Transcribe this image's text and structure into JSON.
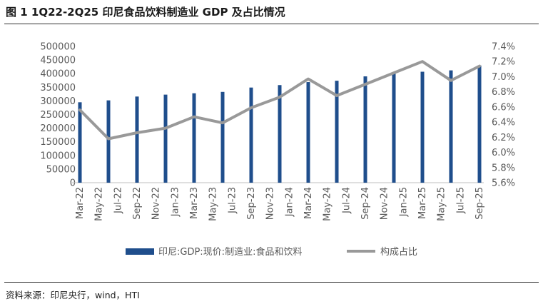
{
  "title": "图 1 1Q22-2Q25 印尼食品饮料制造业 GDP 及占比情况",
  "source": "资料来源：印尼央行，wind，HTI",
  "chart_data": {
    "type": "bar+line",
    "categories": [
      "Mar-22",
      "May-22",
      "Jul-22",
      "Sep-22",
      "Nov-22",
      "Jan-23",
      "Mar-23",
      "May-23",
      "Jul-23",
      "Sep-23",
      "Nov-23",
      "Jan-24",
      "Mar-24",
      "May-24",
      "Jul-24",
      "Sep-24",
      "Nov-24",
      "Jan-25",
      "Mar-25",
      "May-25",
      "Jul-25",
      "Sep-25"
    ],
    "bar_series": {
      "name": "印尼:GDP:现价:制造业:食品和饮料",
      "color": "#1f4e8c",
      "x": [
        "Mar-22",
        "Jun-22",
        "Sep-22",
        "Dec-22",
        "Mar-23",
        "Jun-23",
        "Sep-23",
        "Dec-23",
        "Mar-24",
        "Jun-24",
        "Sep-24",
        "Dec-24",
        "Mar-25",
        "Jun-25",
        "Sep-25"
      ],
      "values": [
        295000,
        302000,
        316000,
        323000,
        328000,
        333000,
        349000,
        358000,
        369000,
        374000,
        390000,
        402000,
        407000,
        412000,
        430000
      ]
    },
    "line_series": {
      "name": "构成占比",
      "color": "#999999",
      "x": [
        "Mar-22",
        "Jun-22",
        "Sep-22",
        "Dec-22",
        "Mar-23",
        "Jun-23",
        "Sep-23",
        "Dec-23",
        "Mar-24",
        "Jun-24",
        "Sep-24",
        "Dec-24",
        "Mar-25",
        "Jun-25",
        "Sep-25"
      ],
      "values": [
        6.56,
        6.18,
        6.26,
        6.32,
        6.47,
        6.39,
        6.59,
        6.73,
        6.97,
        6.75,
        6.9,
        7.05,
        7.2,
        6.95,
        7.14
      ]
    },
    "y_left": {
      "min": 0,
      "max": 500000,
      "step": 50000,
      "ticks": [
        "0",
        "50000",
        "100000",
        "150000",
        "200000",
        "250000",
        "300000",
        "350000",
        "400000",
        "450000",
        "500000"
      ]
    },
    "y_right": {
      "min": 5.6,
      "max": 7.4,
      "step": 0.2,
      "ticks": [
        "5.6%",
        "5.8%",
        "6.0%",
        "6.2%",
        "6.4%",
        "6.6%",
        "6.8%",
        "7.0%",
        "7.2%",
        "7.4%"
      ]
    },
    "grid": false,
    "legend_position": "bottom"
  }
}
